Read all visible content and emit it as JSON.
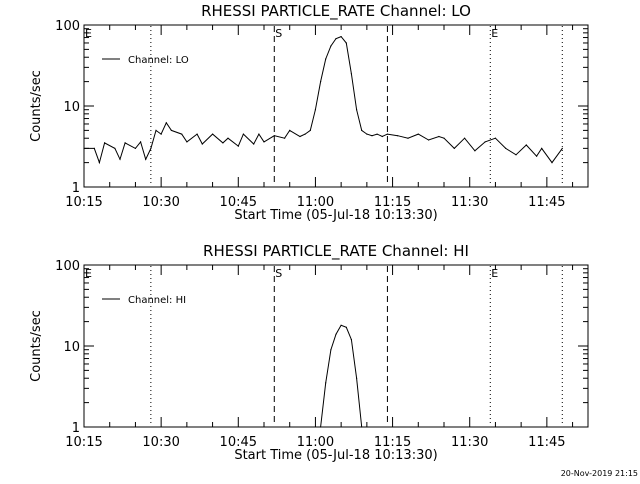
{
  "footer": {
    "timestamp": "20-Nov-2019 21:15"
  },
  "chart_data": [
    {
      "type": "line",
      "title": "RHESSI PARTICLE_RATE Channel: LO",
      "xlabel": "Start Time (05-Jul-18 10:13:30)",
      "ylabel": "Counts/sec",
      "yscale": "log",
      "ylim": [
        1,
        100
      ],
      "xlim": [
        "10:15",
        "11:53"
      ],
      "xticks": [
        "10:15",
        "10:30",
        "10:45",
        "11:00",
        "11:15",
        "11:30",
        "11:45"
      ],
      "yticks": [
        "1",
        "10",
        "100"
      ],
      "legend": {
        "position": "top-left",
        "entries": [
          "Channel: LO"
        ]
      },
      "grid": false,
      "markers": [
        {
          "label": "E",
          "time": "10:15",
          "style": "none"
        },
        {
          "label": "",
          "time": "10:28",
          "style": "dotted"
        },
        {
          "label": "S",
          "time": "10:52",
          "style": "dashed"
        },
        {
          "label": "",
          "time": "11:14",
          "style": "dashed"
        },
        {
          "label": "E",
          "time": "11:34",
          "style": "dotted"
        },
        {
          "label": "",
          "time": "11:48",
          "style": "dotted"
        }
      ],
      "series": [
        {
          "name": "Channel: LO",
          "x": [
            "10:15",
            "10:17",
            "10:18",
            "10:19",
            "10:21",
            "10:22",
            "10:23",
            "10:25",
            "10:26",
            "10:27",
            "10:28",
            "10:29",
            "10:30",
            "10:31",
            "10:32",
            "10:34",
            "10:35",
            "10:37",
            "10:38",
            "10:40",
            "10:42",
            "10:43",
            "10:45",
            "10:46",
            "10:48",
            "10:49",
            "10:50",
            "10:52",
            "10:54",
            "10:55",
            "10:57",
            "10:58",
            "10:59",
            "11:00",
            "11:01",
            "11:02",
            "11:03",
            "11:04",
            "11:05",
            "11:06",
            "11:07",
            "11:08",
            "11:09",
            "11:10",
            "11:11",
            "11:12",
            "11:13",
            "11:14",
            "11:16",
            "11:18",
            "11:20",
            "11:22",
            "11:24",
            "11:25",
            "11:27",
            "11:29",
            "11:31",
            "11:33",
            "11:35",
            "11:37",
            "11:39",
            "11:41",
            "11:43",
            "11:44",
            "11:46",
            "11:48"
          ],
          "values": [
            3.0,
            3.0,
            2.0,
            3.5,
            3.0,
            2.2,
            3.5,
            3.0,
            3.6,
            2.2,
            3.0,
            5.0,
            4.5,
            6.2,
            5.0,
            4.5,
            3.6,
            4.5,
            3.4,
            4.5,
            3.5,
            4.0,
            3.2,
            4.5,
            3.4,
            4.5,
            3.6,
            4.3,
            4.0,
            5.0,
            4.2,
            4.5,
            5.0,
            9.0,
            20.0,
            38.0,
            55.0,
            68.0,
            72.0,
            60.0,
            25.0,
            9.0,
            5.0,
            4.5,
            4.3,
            4.5,
            4.2,
            4.5,
            4.3,
            4.0,
            4.5,
            3.8,
            4.2,
            4.0,
            3.0,
            4.0,
            2.8,
            3.6,
            4.0,
            3.0,
            2.5,
            3.3,
            2.4,
            3.0,
            2.0,
            3.0
          ]
        }
      ]
    },
    {
      "type": "line",
      "title": "RHESSI PARTICLE_RATE Channel: HI",
      "xlabel": "Start Time (05-Jul-18 10:13:30)",
      "ylabel": "Counts/sec",
      "yscale": "log",
      "ylim": [
        1,
        100
      ],
      "xlim": [
        "10:15",
        "11:53"
      ],
      "xticks": [
        "10:15",
        "10:30",
        "10:45",
        "11:00",
        "11:15",
        "11:30",
        "11:45"
      ],
      "yticks": [
        "1",
        "10",
        "100"
      ],
      "legend": {
        "position": "top-left",
        "entries": [
          "Channel: HI"
        ]
      },
      "grid": false,
      "markers": [
        {
          "label": "E",
          "time": "10:15",
          "style": "none"
        },
        {
          "label": "",
          "time": "10:28",
          "style": "dotted"
        },
        {
          "label": "S",
          "time": "10:52",
          "style": "dashed"
        },
        {
          "label": "",
          "time": "11:14",
          "style": "dashed"
        },
        {
          "label": "E",
          "time": "11:34",
          "style": "dotted"
        },
        {
          "label": "",
          "time": "11:48",
          "style": "dotted"
        }
      ],
      "series": [
        {
          "name": "Channel: HI",
          "x": [
            "11:01",
            "11:02",
            "11:03",
            "11:04",
            "11:05",
            "11:06",
            "11:07",
            "11:08",
            "11:09"
          ],
          "values": [
            1.0,
            3.5,
            9.0,
            14.0,
            18.0,
            17.0,
            12.0,
            4.0,
            1.0
          ]
        }
      ]
    }
  ]
}
